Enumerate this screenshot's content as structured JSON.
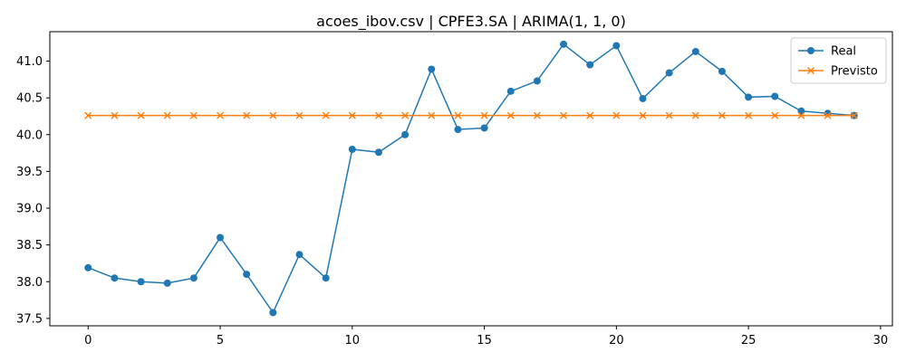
{
  "chart_data": {
    "type": "line",
    "title": "acoes_ibov.csv | CPFE3.SA | ARIMA(1, 1, 0)",
    "xlabel": "",
    "ylabel": "",
    "xlim": [
      -1.45,
      30.45
    ],
    "ylim": [
      37.4,
      41.4
    ],
    "x_ticks": [
      0,
      5,
      10,
      15,
      20,
      25,
      30
    ],
    "x_tick_labels": [
      "0",
      "5",
      "10",
      "15",
      "20",
      "25",
      "30"
    ],
    "y_ticks": [
      37.5,
      38.0,
      38.5,
      39.0,
      39.5,
      40.0,
      40.5,
      41.0
    ],
    "y_tick_labels": [
      "37.5",
      "38.0",
      "38.5",
      "39.0",
      "39.5",
      "40.0",
      "40.5",
      "41.0"
    ],
    "grid": false,
    "legend_position": "top-right",
    "x": [
      0,
      1,
      2,
      3,
      4,
      5,
      6,
      7,
      8,
      9,
      10,
      11,
      12,
      13,
      14,
      15,
      16,
      17,
      18,
      19,
      20,
      21,
      22,
      23,
      24,
      25,
      26,
      27,
      28,
      29
    ],
    "series": [
      {
        "name": "Real",
        "color": "#1f77b4",
        "marker": "circle",
        "values": [
          38.19,
          38.05,
          38.0,
          37.98,
          38.05,
          38.6,
          38.1,
          37.58,
          38.37,
          38.05,
          39.8,
          39.76,
          40.0,
          40.89,
          40.07,
          40.09,
          40.59,
          40.73,
          41.23,
          40.95,
          41.21,
          40.49,
          40.84,
          41.13,
          40.86,
          40.51,
          40.52,
          40.32,
          40.29,
          40.26
        ]
      },
      {
        "name": "Previsto",
        "color": "#ff7f0e",
        "marker": "x",
        "values": [
          40.26,
          40.26,
          40.26,
          40.26,
          40.26,
          40.26,
          40.26,
          40.26,
          40.26,
          40.26,
          40.26,
          40.26,
          40.26,
          40.26,
          40.26,
          40.26,
          40.26,
          40.26,
          40.26,
          40.26,
          40.26,
          40.26,
          40.26,
          40.26,
          40.26,
          40.26,
          40.26,
          40.26,
          40.26,
          40.26
        ]
      }
    ]
  }
}
